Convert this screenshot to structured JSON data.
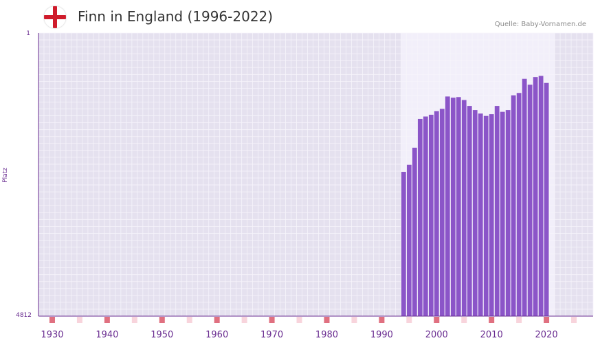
{
  "header": {
    "title": "Finn in England (1996-2022)",
    "source": "Quelle: Baby-Vornamen.de",
    "flag_icon": "england-flag-icon"
  },
  "colors": {
    "bar": "#8b55c8",
    "axis": "#6a2d91",
    "label": "#6a2d91",
    "plot_bg": "#e5e1ef",
    "highlight_bg": "#f2effa",
    "grid": "#f6f4fb",
    "decade_marker": "#e07080",
    "half_decade_marker": "#f8d4dc",
    "flag_red": "#cf1b2b"
  },
  "chart_data": {
    "type": "bar",
    "title": "Finn in England (1996-2022)",
    "ylabel": "Platz",
    "xlabel": "",
    "y_inverted": true,
    "ylim": [
      1,
      4812
    ],
    "y_tick_labels": [
      "1",
      "4812"
    ],
    "xlim": [
      1928,
      2029
    ],
    "x_tick_labels": [
      "1930",
      "1940",
      "1950",
      "1960",
      "1970",
      "1980",
      "1990",
      "2000",
      "2010",
      "2020"
    ],
    "highlight_range": [
      1994,
      2022
    ],
    "series": [
      {
        "name": "Finn",
        "x": [
          1994,
          1995,
          1996,
          1997,
          1998,
          1999,
          2000,
          2001,
          2002,
          2003,
          2004,
          2005,
          2006,
          2007,
          2008,
          2009,
          2010,
          2011,
          2012,
          2013,
          2014,
          2015,
          2016,
          2017,
          2018,
          2019,
          2020
        ],
        "values": [
          2360,
          2240,
          1950,
          1460,
          1420,
          1390,
          1330,
          1290,
          1080,
          1100,
          1090,
          1140,
          1240,
          1310,
          1370,
          1410,
          1380,
          1240,
          1340,
          1310,
          1060,
          1020,
          780,
          880,
          750,
          730,
          850
        ]
      }
    ]
  }
}
